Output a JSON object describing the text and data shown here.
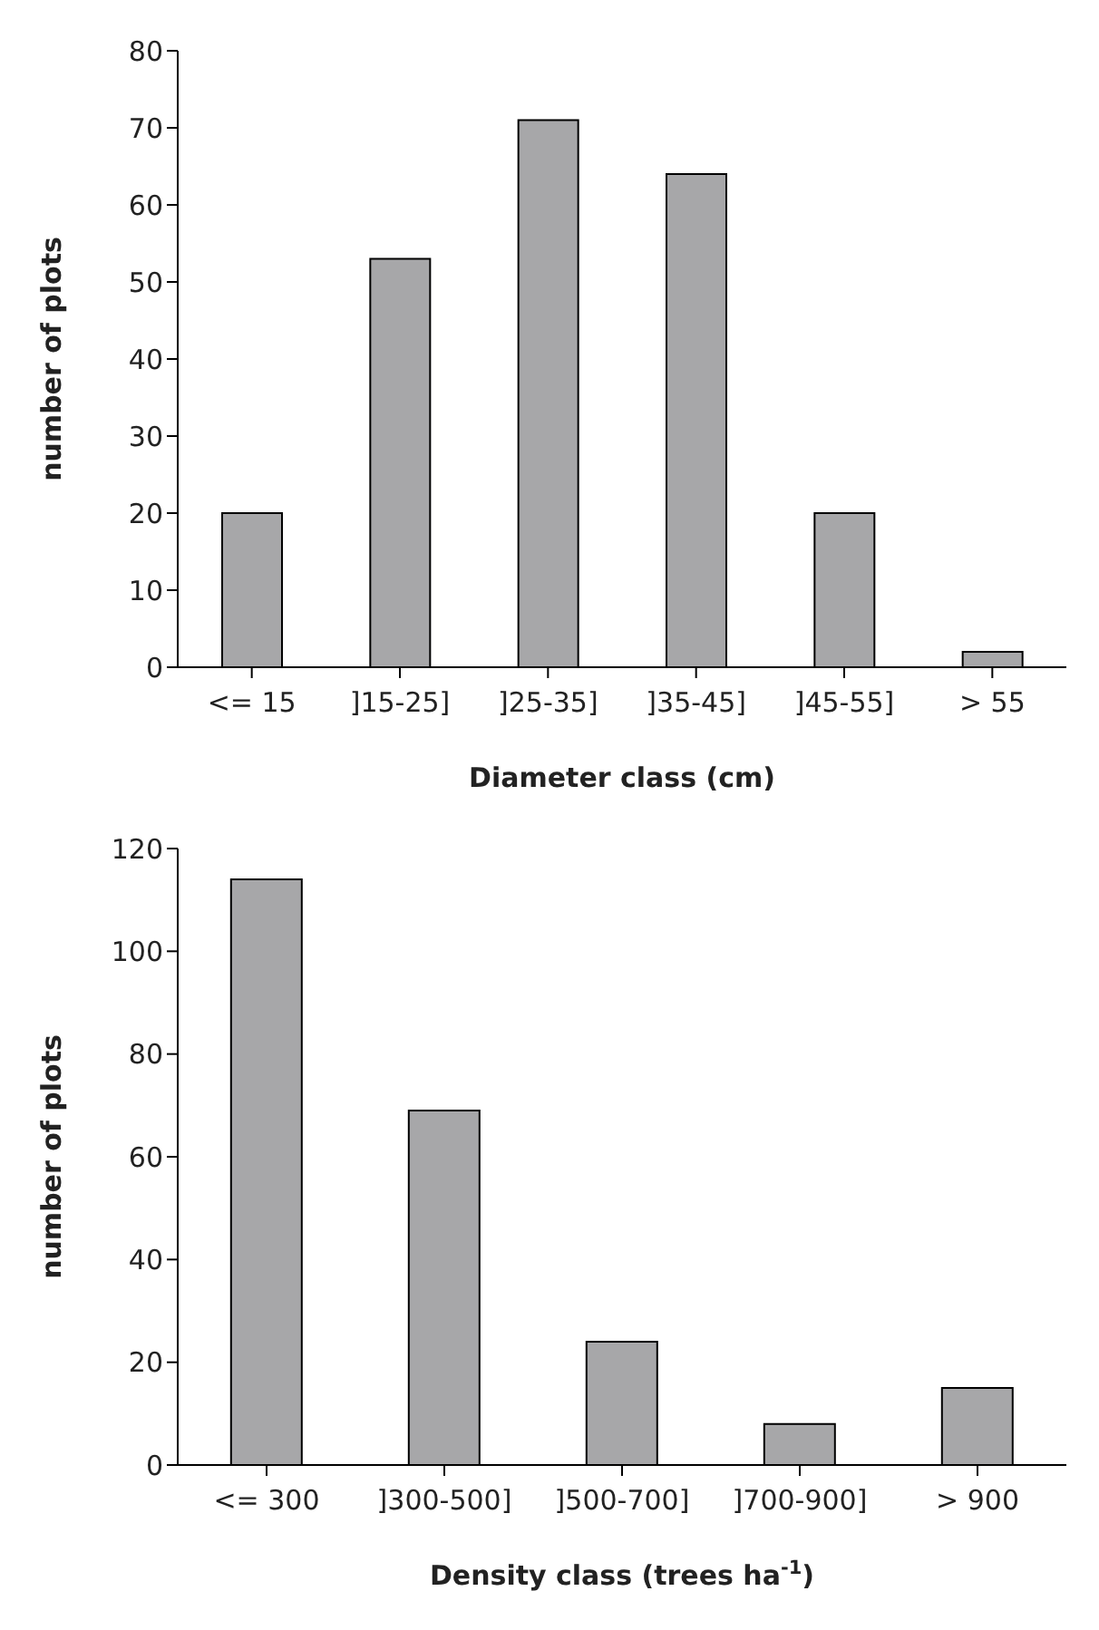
{
  "chart_data": [
    {
      "type": "bar",
      "categories": [
        "<= 15",
        "]15-25]",
        "]25-35]",
        "]35-45]",
        "]45-55]",
        "> 55"
      ],
      "values": [
        20,
        53,
        71,
        64,
        20,
        2
      ],
      "color": "#a7a7a9",
      "xlabel": "Diameter class (cm)",
      "ylabel": "number of plots",
      "ylim": [
        0,
        80
      ],
      "yticks": [
        0,
        10,
        20,
        30,
        40,
        50,
        60,
        70,
        80
      ],
      "grid": false,
      "legend": false
    },
    {
      "type": "bar",
      "categories": [
        "<= 300",
        "]300-500]",
        "]500-700]",
        "]700-900]",
        "> 900"
      ],
      "values": [
        114,
        69,
        24,
        8,
        15
      ],
      "color": "#a7a7a9",
      "xlabel": "Density class  (trees ha$^{-1}$)",
      "ylabel": "number of plots",
      "ylim": [
        0,
        120
      ],
      "yticks": [
        0,
        20,
        40,
        60,
        80,
        100,
        120
      ],
      "grid": false,
      "legend": false
    }
  ]
}
